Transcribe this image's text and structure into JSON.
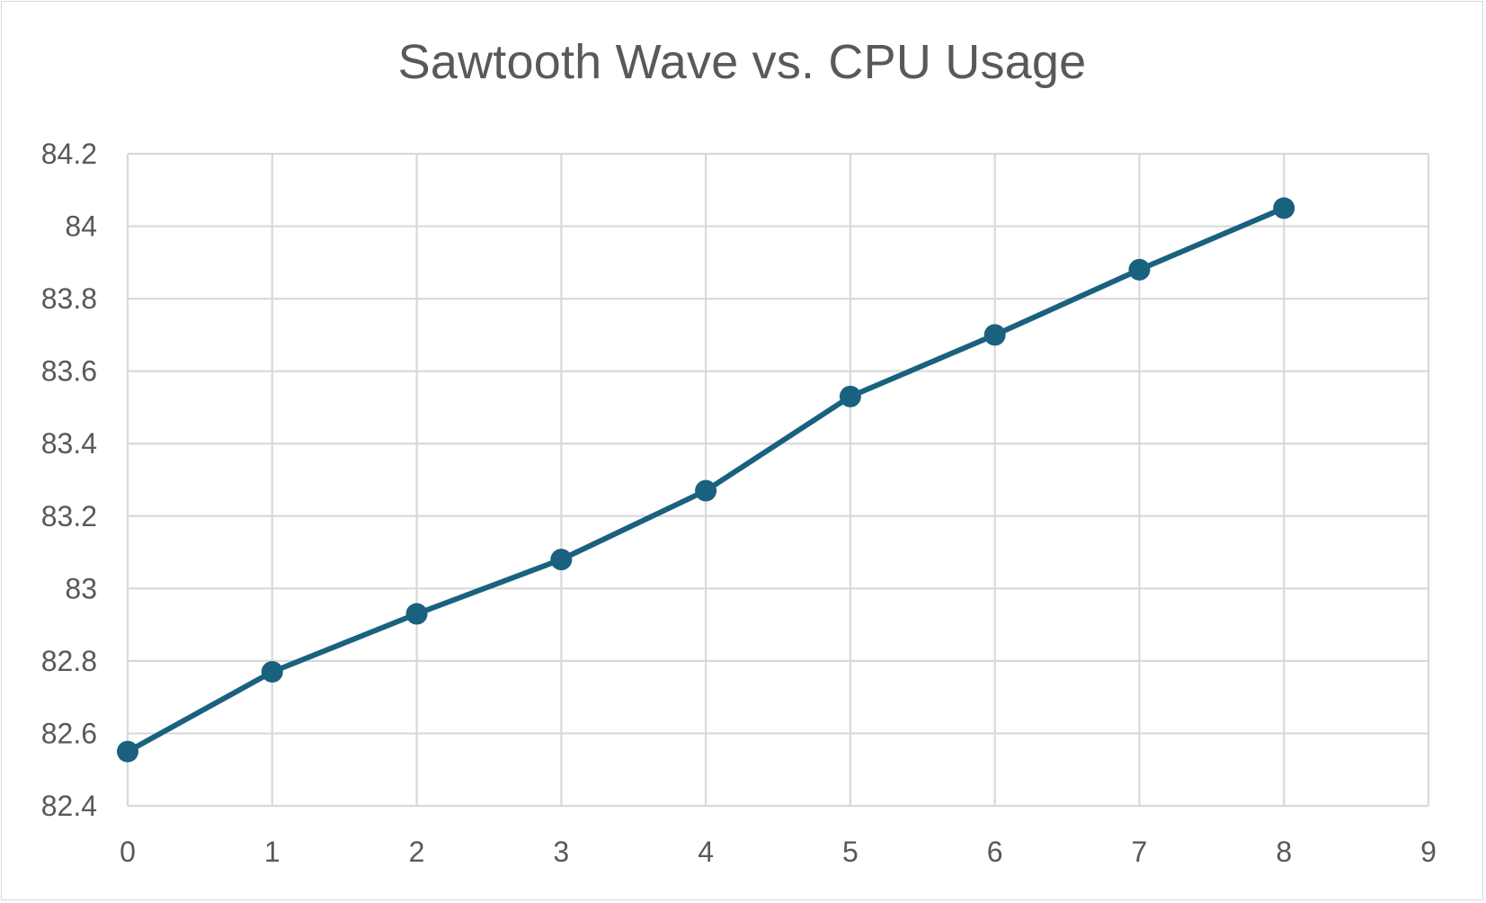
{
  "chart_data": {
    "type": "line",
    "title": "Sawtooth Wave vs. CPU Usage",
    "xlabel": "",
    "ylabel": "",
    "xlim": [
      0,
      9
    ],
    "ylim": [
      82.4,
      84.2
    ],
    "x_ticks": [
      "0",
      "1",
      "2",
      "3",
      "4",
      "5",
      "6",
      "7",
      "8",
      "9"
    ],
    "y_ticks": [
      "82.4",
      "82.6",
      "82.8",
      "83",
      "83.2",
      "83.4",
      "83.6",
      "83.8",
      "84",
      "84.2"
    ],
    "grid": true,
    "legend": "none",
    "series": [
      {
        "x": [
          0,
          1,
          2,
          3,
          4,
          5,
          6,
          7,
          8
        ],
        "values": [
          82.55,
          82.77,
          82.93,
          83.08,
          83.27,
          83.53,
          83.7,
          83.88,
          84.05
        ],
        "color": "#1a6180",
        "markers": "circle"
      }
    ]
  }
}
